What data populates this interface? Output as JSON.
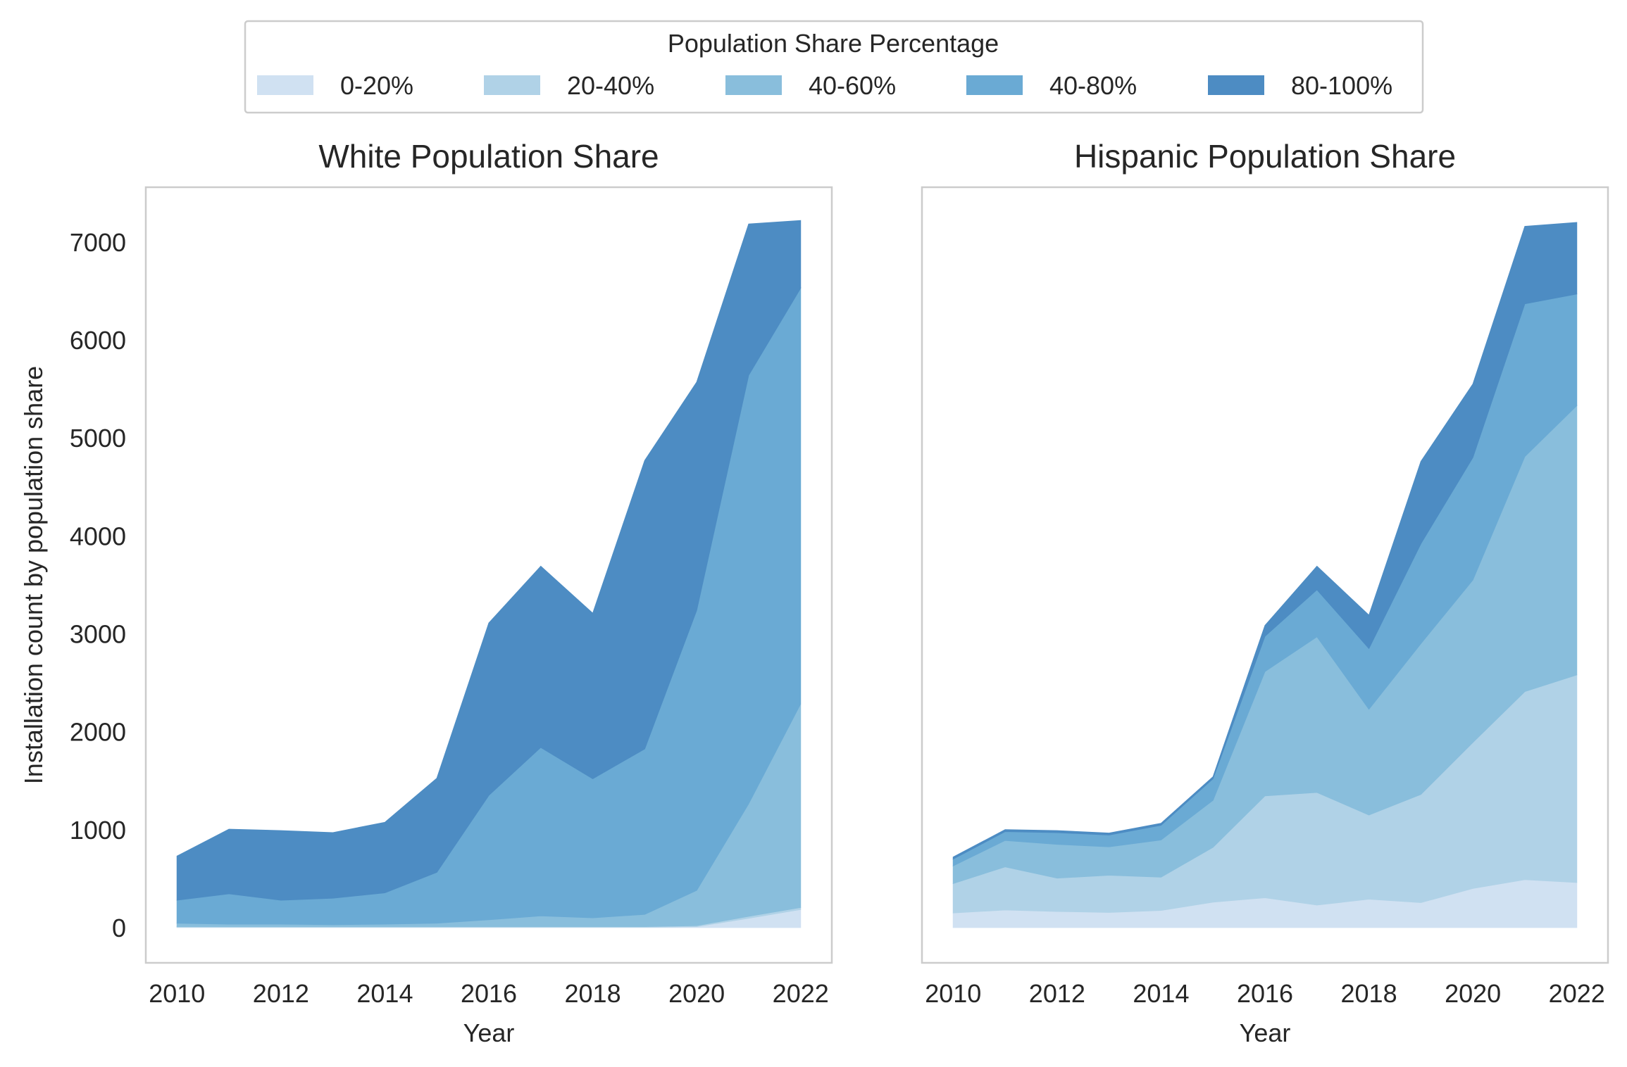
{
  "legend": {
    "title": "Population Share Percentage",
    "placement": "top-center",
    "entries": [
      "0-20%",
      "20-40%",
      "40-60%",
      "40-80%",
      "80-100%"
    ],
    "colors": [
      "#d0e1f2",
      "#b0d2e7",
      "#89bedc",
      "#6aaad4",
      "#4d8cc3"
    ]
  },
  "chart_data": [
    {
      "type": "area",
      "stacked": true,
      "title": "White Population Share",
      "xlabel": "Year",
      "ylabel": "Installation count by population share",
      "grid": false,
      "x": [
        2010,
        2011,
        2012,
        2013,
        2014,
        2015,
        2016,
        2017,
        2018,
        2019,
        2020,
        2021,
        2022
      ],
      "xticks": [
        "2010",
        "2012",
        "2014",
        "2016",
        "2018",
        "2020",
        "2022"
      ],
      "yticks": [
        "0",
        "1000",
        "2000",
        "3000",
        "4000",
        "5000",
        "6000",
        "7000"
      ],
      "xlim": [
        2009.4,
        2022.6
      ],
      "ylim": [
        -360,
        7560
      ],
      "series": [
        {
          "name": "0-20%",
          "values": [
            5,
            5,
            5,
            5,
            5,
            5,
            5,
            5,
            5,
            5,
            10,
            95,
            185
          ]
        },
        {
          "name": "20-40%",
          "values": [
            5,
            5,
            5,
            5,
            5,
            5,
            5,
            5,
            5,
            5,
            10,
            20,
            20
          ]
        },
        {
          "name": "40-60%",
          "values": [
            35,
            25,
            25,
            20,
            25,
            35,
            70,
            110,
            90,
            125,
            360,
            1150,
            2080
          ]
        },
        {
          "name": "40-80%",
          "values": [
            235,
            310,
            245,
            270,
            320,
            520,
            1270,
            1720,
            1420,
            1690,
            2860,
            4375,
            4245
          ]
        },
        {
          "name": "80-100%",
          "values": [
            450,
            660,
            710,
            670,
            720,
            960,
            1760,
            1850,
            1690,
            2945,
            2330,
            1545,
            690
          ]
        }
      ]
    },
    {
      "type": "area",
      "stacked": true,
      "title": "Hispanic Population Share",
      "xlabel": "Year",
      "ylabel": "",
      "grid": false,
      "x": [
        2010,
        2011,
        2012,
        2013,
        2014,
        2015,
        2016,
        2017,
        2018,
        2019,
        2020,
        2021,
        2022
      ],
      "xticks": [
        "2010",
        "2012",
        "2014",
        "2016",
        "2018",
        "2020",
        "2022"
      ],
      "yticks": [],
      "xlim": [
        2009.4,
        2022.6
      ],
      "ylim": [
        -360,
        7560
      ],
      "series": [
        {
          "name": "0-20%",
          "values": [
            150,
            180,
            165,
            155,
            175,
            260,
            305,
            230,
            290,
            255,
            400,
            490,
            460
          ]
        },
        {
          "name": "20-40%",
          "values": [
            300,
            440,
            340,
            380,
            340,
            560,
            1040,
            1150,
            860,
            1105,
            1490,
            1920,
            2120
          ]
        },
        {
          "name": "40-60%",
          "values": [
            180,
            270,
            345,
            290,
            380,
            480,
            1270,
            1590,
            1080,
            1540,
            1660,
            2400,
            2750
          ]
        },
        {
          "name": "40-80%",
          "values": [
            70,
            90,
            120,
            120,
            150,
            220,
            360,
            480,
            620,
            1020,
            1250,
            1560,
            1140
          ]
        },
        {
          "name": "80-100%",
          "values": [
            20,
            20,
            20,
            20,
            20,
            20,
            110,
            240,
            340,
            840,
            750,
            790,
            730
          ]
        }
      ]
    }
  ]
}
